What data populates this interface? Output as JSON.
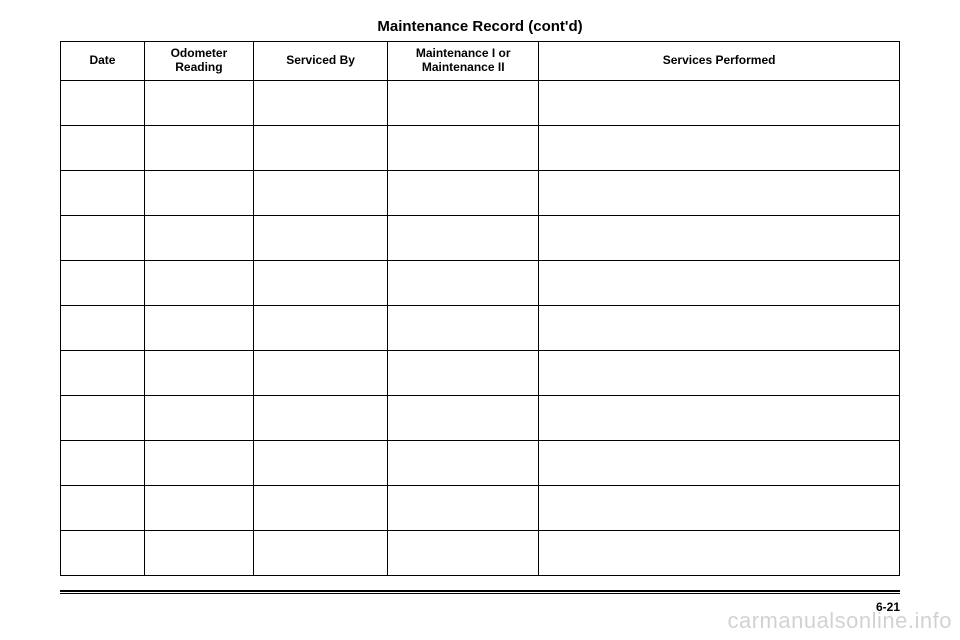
{
  "title": "Maintenance Record (cont'd)",
  "columns": {
    "date": "Date",
    "odometer": "Odometer\nReading",
    "servicedBy": "Serviced By",
    "maintType": "Maintenance I or\nMaintenance II",
    "services": "Services Performed"
  },
  "rowCount": 11,
  "pageNumber": "6-21",
  "watermark": "carmanualsonline.info",
  "colors": {
    "border": "#000000",
    "text": "#000000",
    "background": "#ffffff",
    "watermark": "rgba(0,0,0,0.18)"
  }
}
